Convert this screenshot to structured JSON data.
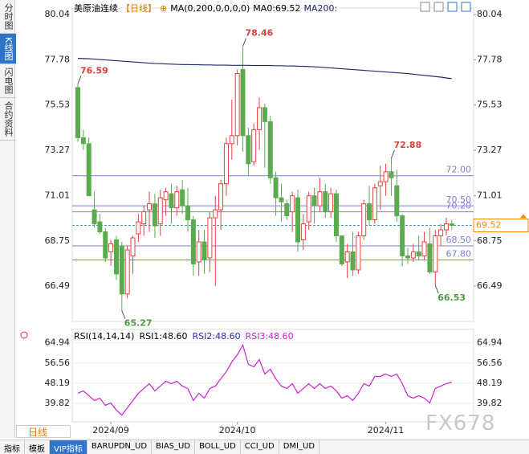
{
  "chart_data": {
    "type": "candlestick",
    "header": {
      "name": "美原油连续",
      "period": "【日线】",
      "icon": "⊕",
      "ma_params": "MA(0,200,0,0,0,0)",
      "ma0": "MA0:69.52",
      "ma200": "MA200:"
    },
    "categories": [
      null,
      null,
      null,
      null,
      null,
      null,
      "2024/09",
      null,
      null,
      null,
      null,
      null,
      null,
      null,
      null,
      null,
      null,
      null,
      null,
      null,
      null,
      null,
      null,
      null,
      null,
      null,
      null,
      null,
      null,
      "2024/10",
      null,
      null,
      null,
      null,
      null,
      null,
      null,
      null,
      null,
      null,
      null,
      null,
      null,
      null,
      null,
      null,
      null,
      null,
      null,
      null,
      null,
      null,
      null,
      null,
      null,
      null,
      "2024/11",
      null,
      null,
      null,
      null,
      null,
      null,
      null,
      null,
      null,
      null,
      null,
      null
    ],
    "open": [
      76.4,
      73.9,
      73.6,
      70.3,
      69.7,
      69.2,
      68.2,
      68.8,
      68.5,
      66.1,
      68.0,
      69.1,
      69.6,
      70.3,
      70.6,
      69.6,
      70.8,
      71.1,
      70.4,
      71.3,
      70.5,
      69.8,
      67.7,
      68.7,
      67.9,
      69.9,
      70.3,
      71.6,
      73.6,
      74.0,
      77.3,
      74.0,
      72.7,
      74.3,
      75.4,
      74.7,
      71.9,
      70.9,
      70.6,
      70.2,
      70.9,
      68.8,
      69.7,
      71.0,
      70.5,
      71.2,
      70.2,
      71.1,
      69.0,
      67.7,
      68.2,
      67.3,
      69.0,
      70.6,
      69.8,
      71.5,
      71.7,
      72.2,
      71.5,
      70.0,
      68.0,
      67.9,
      68.2,
      68.0,
      68.6,
      67.2,
      69.0,
      69.3,
      69.6
    ],
    "high": [
      76.59,
      74.3,
      73.9,
      71.2,
      70.1,
      69.4,
      68.8,
      69.0,
      68.7,
      68.5,
      69.0,
      70.1,
      70.5,
      71.2,
      71.1,
      71.3,
      71.4,
      71.6,
      71.5,
      71.8,
      71.4,
      70.0,
      69.3,
      69.3,
      70.2,
      71.0,
      71.8,
      73.9,
      75.8,
      77.3,
      78.46,
      74.4,
      74.6,
      75.9,
      75.6,
      75.0,
      72.2,
      71.6,
      70.8,
      71.2,
      71.3,
      70.1,
      71.2,
      71.4,
      71.9,
      71.6,
      71.4,
      71.3,
      69.0,
      68.6,
      69.2,
      69.2,
      70.8,
      71.5,
      71.6,
      72.5,
      72.6,
      72.88,
      72.3,
      70.1,
      68.4,
      68.6,
      69.0,
      69.2,
      69.4,
      69.3,
      69.6,
      69.9,
      69.8
    ],
    "low": [
      73.7,
      73.3,
      71.0,
      69.4,
      69.1,
      67.7,
      67.5,
      66.8,
      65.27,
      65.9,
      67.1,
      68.7,
      69.0,
      69.2,
      68.9,
      69.0,
      70.0,
      69.6,
      70.0,
      70.1,
      69.2,
      67.0,
      67.0,
      67.1,
      67.2,
      66.5,
      69.3,
      71.0,
      72.8,
      73.5,
      73.2,
      72.0,
      72.5,
      73.3,
      72.4,
      71.6,
      70.0,
      69.7,
      69.8,
      69.2,
      68.2,
      68.3,
      69.3,
      69.6,
      70.2,
      69.9,
      69.9,
      68.7,
      67.5,
      66.9,
      67.0,
      67.1,
      68.8,
      69.5,
      69.6,
      70.3,
      71.0,
      71.0,
      69.7,
      67.5,
      67.6,
      67.7,
      67.8,
      67.8,
      67.1,
      66.53,
      68.5,
      69.0,
      69.3
    ],
    "close": [
      73.9,
      73.6,
      71.0,
      69.6,
      69.2,
      67.9,
      68.6,
      67.1,
      66.1,
      68.3,
      68.9,
      69.7,
      70.2,
      70.6,
      69.5,
      70.9,
      71.2,
      70.4,
      71.2,
      70.5,
      69.8,
      67.6,
      68.7,
      67.8,
      69.9,
      70.3,
      71.6,
      73.6,
      74.0,
      77.1,
      74.0,
      72.6,
      74.3,
      75.4,
      74.7,
      71.9,
      70.9,
      70.7,
      70.0,
      71.0,
      68.7,
      69.6,
      71.0,
      70.5,
      71.2,
      70.2,
      71.1,
      69.0,
      67.6,
      68.2,
      67.3,
      69.0,
      70.6,
      69.8,
      71.4,
      71.7,
      72.2,
      71.9,
      70.0,
      68.0,
      67.9,
      68.2,
      68.0,
      68.7,
      67.2,
      69.0,
      69.3,
      69.6,
      69.52
    ],
    "up_color": "#e8423f",
    "down_color": "#5aab4e",
    "series": [
      {
        "name": "MA200",
        "color": "#1f2a6b",
        "values": [
          77.86,
          77.85,
          77.84,
          77.82,
          77.8,
          77.78,
          77.76,
          77.74,
          77.72,
          77.7,
          77.68,
          77.66,
          77.64,
          77.62,
          77.6,
          77.59,
          77.58,
          77.57,
          77.56,
          77.55,
          77.55,
          77.54,
          77.54,
          77.53,
          77.53,
          77.52,
          77.52,
          77.52,
          77.51,
          77.51,
          77.51,
          77.51,
          77.5,
          77.5,
          77.5,
          77.5,
          77.49,
          77.49,
          77.48,
          77.48,
          77.47,
          77.46,
          77.45,
          77.44,
          77.42,
          77.4,
          77.38,
          77.36,
          77.34,
          77.32,
          77.3,
          77.28,
          77.26,
          77.24,
          77.22,
          77.2,
          77.18,
          77.16,
          77.14,
          77.12,
          77.1,
          77.07,
          77.04,
          77.01,
          76.98,
          76.95,
          76.92,
          76.88,
          76.85
        ]
      }
    ],
    "ylim": [
      64.73,
      80.37
    ],
    "yticks": [
      80.04,
      77.78,
      75.53,
      73.27,
      71.01,
      68.75,
      66.49
    ],
    "levels": [
      {
        "value": 72,
        "label": "72.00"
      },
      {
        "value": 70.5,
        "label": "70.50"
      },
      {
        "value": 70.2,
        "label": "70.20"
      },
      {
        "value": 68.5,
        "label": "68.50"
      },
      {
        "value": 67.8,
        "label": "67.80"
      }
    ],
    "level_color": "#7f7fd8",
    "last_price": 69.52,
    "last_color": "#f08a00",
    "rsi": {
      "header": [
        "RSI(14,14,14)",
        "RSI1:48.60",
        "RSI2:48.60",
        "RSI3:48.60"
      ],
      "header_colors": [
        "#000000",
        "#000000",
        "#2a2aa8",
        "#d020d0"
      ],
      "color": "#d020d0",
      "values": [
        44,
        45,
        43,
        41,
        42,
        39,
        40,
        37,
        35,
        38,
        41,
        44,
        46,
        48,
        45,
        47,
        49,
        48,
        49,
        47,
        46,
        41,
        44,
        42,
        46,
        47,
        50,
        53,
        57,
        60,
        64,
        56,
        55,
        58,
        52,
        54,
        50,
        47,
        46,
        48,
        44,
        46,
        48,
        46,
        48,
        46,
        47,
        45,
        42,
        43,
        41,
        44,
        48,
        47,
        51,
        51,
        52,
        51,
        52,
        48,
        43,
        42,
        43,
        42,
        40,
        46,
        47,
        48,
        48.6
      ],
      "ylim": [
        32.15,
        70.5
      ],
      "yticks": [
        64.94,
        56.56,
        48.19,
        39.82
      ]
    }
  },
  "sidebar": [
    "分时图",
    "K线图",
    "闪电图",
    "合约资料"
  ],
  "period_box": "日线",
  "tabs": [
    "指标",
    "模板",
    "VIP指标",
    "BARUPDN_UD",
    "BIAS_UD",
    "BOLL_UD",
    "CCI_UD",
    "DMI_UD"
  ],
  "watermark": "FX678"
}
